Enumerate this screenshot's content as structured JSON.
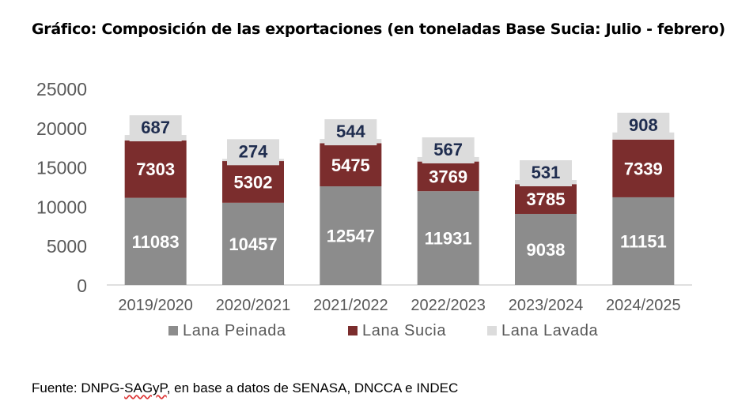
{
  "title": "Gráfico: Composición de las exportaciones (en toneladas Base Sucia: Julio - febrero)",
  "source": {
    "prefix": "Fuente: DNPG-",
    "underlined": "SAGyP",
    "suffix": ", en base a datos de SENASA, DNCCA e INDEC"
  },
  "chart_data": {
    "type": "bar",
    "stacked": true,
    "title": "Gráfico: Composición de las exportaciones (en toneladas Base Sucia: Julio - febrero)",
    "xlabel": "",
    "ylabel": "",
    "ylim": [
      0,
      25000
    ],
    "yticks": [
      0,
      5000,
      10000,
      15000,
      20000,
      25000
    ],
    "categories": [
      "2019/2020",
      "2020/2021",
      "2021/2022",
      "2022/2023",
      "2023/2024",
      "2024/2025"
    ],
    "series": [
      {
        "name": "Lana Peinada",
        "color": "#8c8c8c",
        "values": [
          11083,
          10457,
          12547,
          11931,
          9038,
          11151
        ]
      },
      {
        "name": "Lana Sucia",
        "color": "#7b2d2d",
        "values": [
          7303,
          5302,
          5475,
          3769,
          3785,
          7339
        ]
      },
      {
        "name": "Lana Lavada",
        "color": "#dcdcdc",
        "values": [
          687,
          274,
          544,
          567,
          531,
          908
        ]
      }
    ],
    "legend_position": "bottom",
    "grid": false,
    "label_colors": {
      "light_text": "#ffffff",
      "dark_text": "#1f2d4f",
      "axis_text": "#595959"
    }
  }
}
